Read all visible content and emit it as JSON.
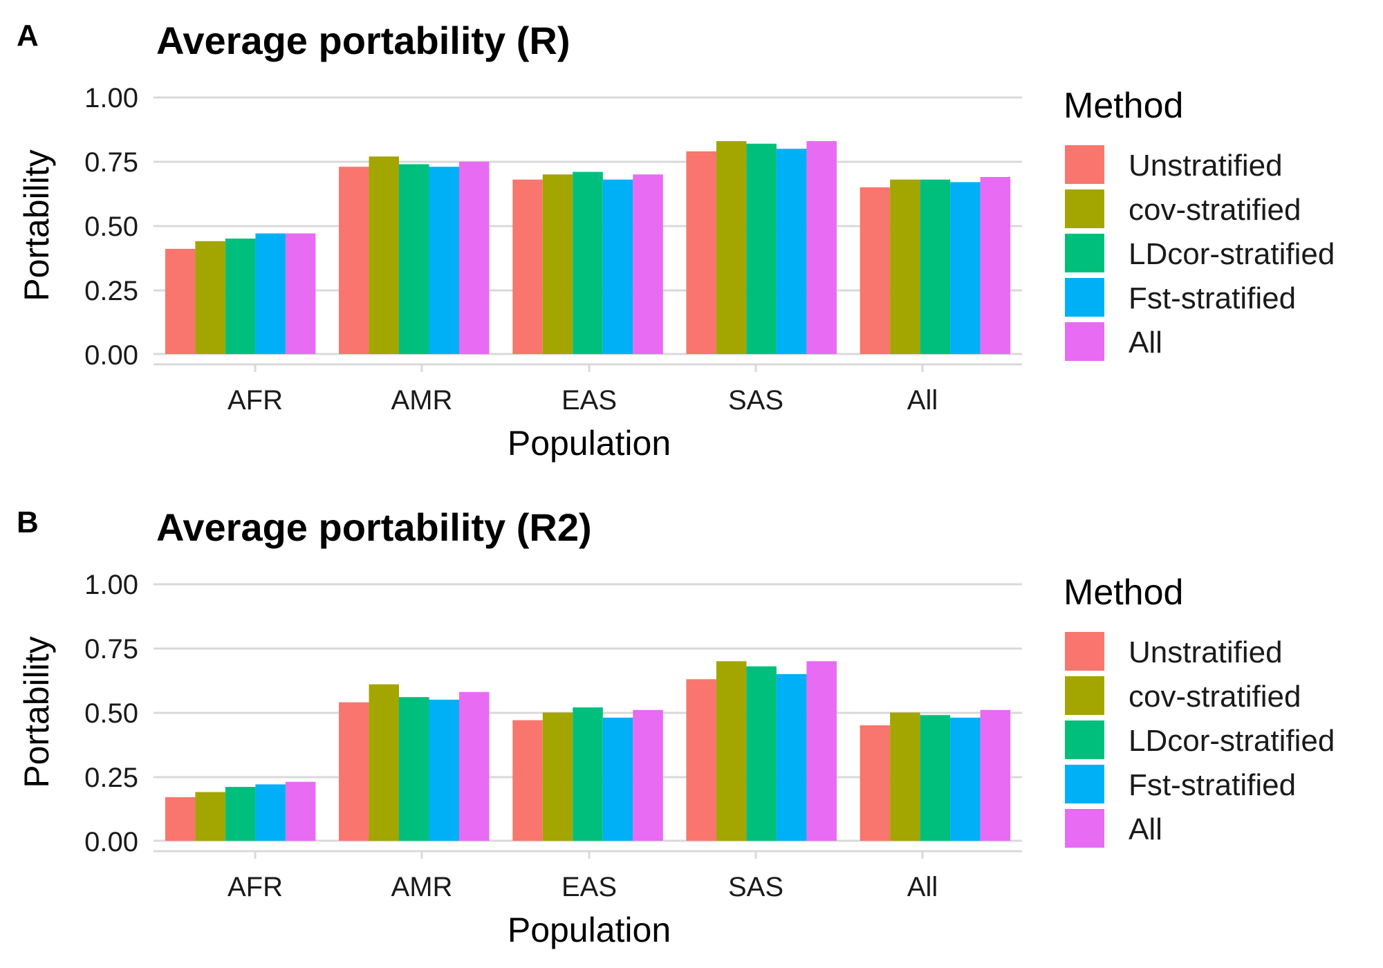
{
  "colors": {
    "series": [
      "#F8766D",
      "#A3A500",
      "#00BF7D",
      "#00B0F6",
      "#E76BF3"
    ]
  },
  "chart_data": [
    {
      "type": "bar",
      "panel_label": "A",
      "title": "Average portability (R)",
      "xlabel": "Population",
      "ylabel": "Portability",
      "ylim": [
        0,
        1
      ],
      "yticks": [
        0.0,
        0.25,
        0.5,
        0.75,
        1.0
      ],
      "ytick_labels": [
        "0.00",
        "0.25",
        "0.50",
        "0.75",
        "1.00"
      ],
      "grid": true,
      "legend_title": "Method",
      "legend_position": "right",
      "categories": [
        "AFR",
        "AMR",
        "EAS",
        "SAS",
        "All"
      ],
      "series": [
        {
          "name": "Unstratified",
          "values": [
            0.41,
            0.73,
            0.68,
            0.79,
            0.65
          ]
        },
        {
          "name": "cov-stratified",
          "values": [
            0.44,
            0.77,
            0.7,
            0.83,
            0.68
          ]
        },
        {
          "name": "LDcor-stratified",
          "values": [
            0.45,
            0.74,
            0.71,
            0.82,
            0.68
          ]
        },
        {
          "name": "Fst-stratified",
          "values": [
            0.47,
            0.73,
            0.68,
            0.8,
            0.67
          ]
        },
        {
          "name": "All",
          "values": [
            0.47,
            0.75,
            0.7,
            0.83,
            0.69
          ]
        }
      ]
    },
    {
      "type": "bar",
      "panel_label": "B",
      "title": "Average portability (R2)",
      "xlabel": "Population",
      "ylabel": "Portability",
      "ylim": [
        0,
        1
      ],
      "yticks": [
        0.0,
        0.25,
        0.5,
        0.75,
        1.0
      ],
      "ytick_labels": [
        "0.00",
        "0.25",
        "0.50",
        "0.75",
        "1.00"
      ],
      "grid": true,
      "legend_title": "Method",
      "legend_position": "right",
      "categories": [
        "AFR",
        "AMR",
        "EAS",
        "SAS",
        "All"
      ],
      "series": [
        {
          "name": "Unstratified",
          "values": [
            0.17,
            0.54,
            0.47,
            0.63,
            0.45
          ]
        },
        {
          "name": "cov-stratified",
          "values": [
            0.19,
            0.61,
            0.5,
            0.7,
            0.5
          ]
        },
        {
          "name": "LDcor-stratified",
          "values": [
            0.21,
            0.56,
            0.52,
            0.68,
            0.49
          ]
        },
        {
          "name": "Fst-stratified",
          "values": [
            0.22,
            0.55,
            0.48,
            0.65,
            0.48
          ]
        },
        {
          "name": "All",
          "values": [
            0.23,
            0.58,
            0.51,
            0.7,
            0.51
          ]
        }
      ]
    }
  ]
}
